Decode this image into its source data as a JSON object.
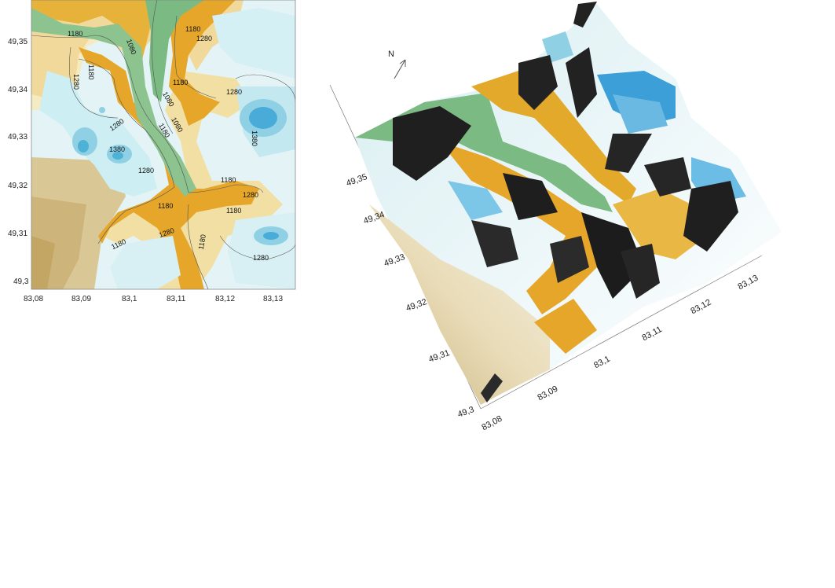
{
  "contour_map": {
    "x_ticks": [
      "83,08",
      "83,09",
      "83,1",
      "83,11",
      "83,12",
      "83,13"
    ],
    "y_ticks": [
      "49,35",
      "49,34",
      "49,33",
      "49,32",
      "49,31",
      "49,3"
    ],
    "contour_labels": [
      "1180",
      "1080",
      "1180",
      "1280",
      "1280",
      "1180",
      "1180",
      "1080",
      "1280",
      "1080",
      "1280",
      "1380",
      "1180",
      "1380",
      "1280",
      "1180",
      "1280",
      "1180",
      "1180",
      "1180",
      "1280",
      "1180",
      "1280"
    ]
  },
  "relief_3d": {
    "north_label": "N",
    "y_ticks": [
      "49,35",
      "49,34",
      "49,33",
      "49,32",
      "49,31",
      "49,3"
    ],
    "x_ticks": [
      "83,08",
      "83,09",
      "83,1",
      "83,11",
      "83,12",
      "83,13"
    ]
  },
  "colors": {
    "valley_green": "#7cba84",
    "low_tan": "#d6c28e",
    "ochre": "#e3a92b",
    "cream": "#f3e6b6",
    "light_cyan": "#dff2f5",
    "cyan": "#a6dcea",
    "blue_peak": "#3d9fd8",
    "shadow": "#1a1a1a"
  }
}
